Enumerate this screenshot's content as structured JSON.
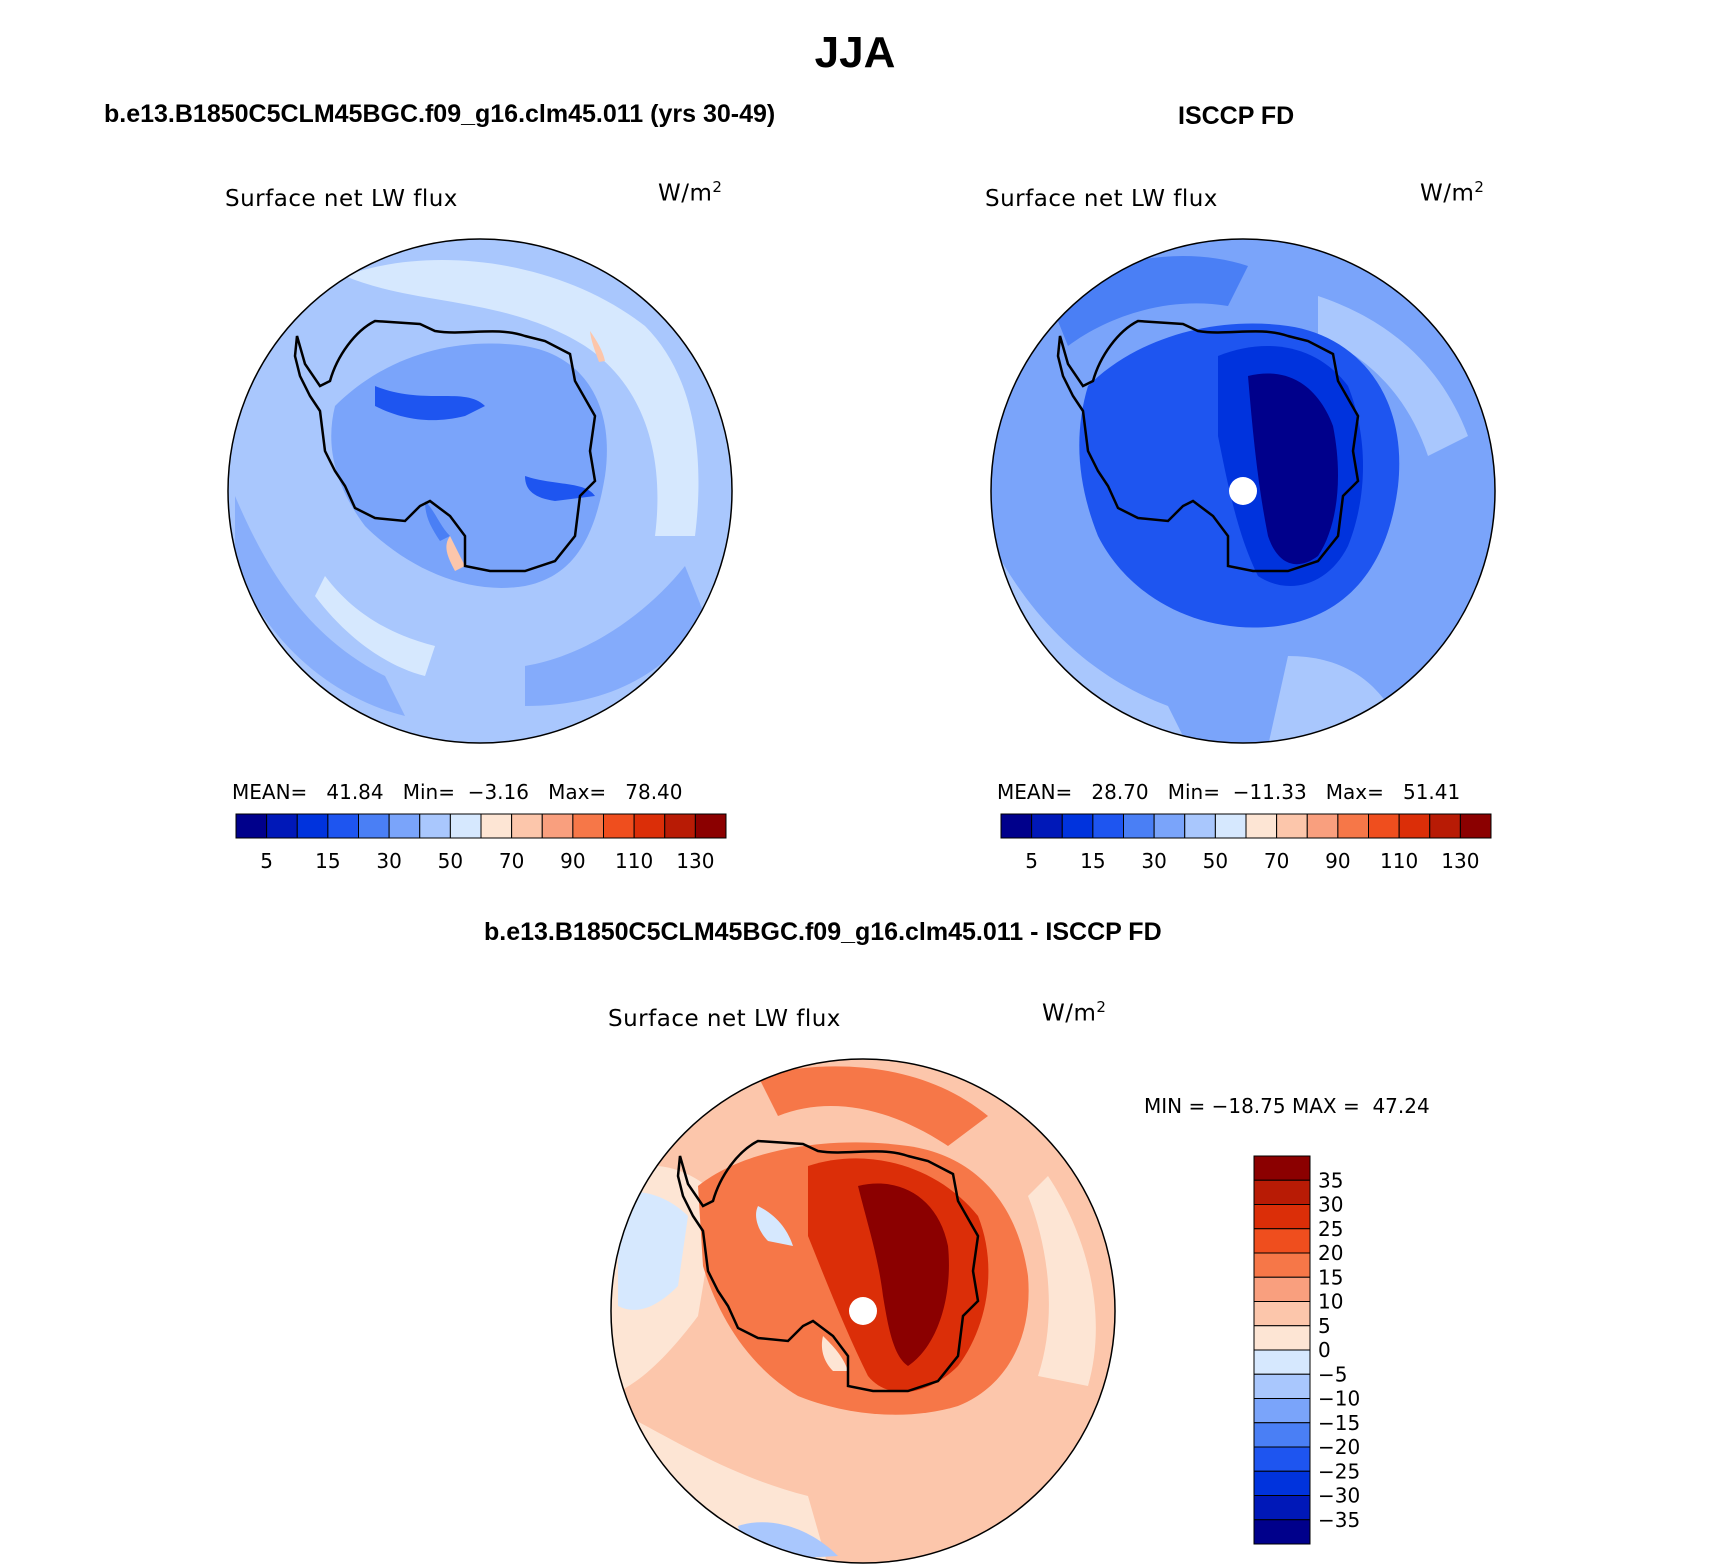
{
  "figure": {
    "title": "JJA"
  },
  "panels": {
    "model": {
      "heading": "b.e13.B1850C5CLM45BGC.f09_g16.clm45.011 (yrs 30-49)",
      "variable": "Surface net LW flux",
      "units": "W/m",
      "units_exp": "2",
      "stats": {
        "mean_label": "MEAN=",
        "mean": "41.84",
        "min_label": "Min=",
        "min": "−3.16",
        "max_label": "Max=",
        "max": "78.40"
      }
    },
    "obs": {
      "heading": "ISCCP FD",
      "variable": "Surface net LW flux",
      "units": "W/m",
      "units_exp": "2",
      "stats": {
        "mean_label": "MEAN=",
        "mean": "28.70",
        "min_label": "Min=",
        "min": "−11.33",
        "max_label": "Max=",
        "max": "51.41"
      }
    },
    "diff": {
      "heading": "b.e13.B1850C5CLM45BGC.f09_g16.clm45.011 - ISCCP FD",
      "variable": "Surface net LW flux",
      "units": "W/m",
      "units_exp": "2",
      "stats": {
        "min_label": "MIN =",
        "min": "−18.75",
        "max_label": "MAX =",
        "max": "47.24"
      }
    }
  },
  "colorbar_main": {
    "colors": [
      "#00008b",
      "#0018b8",
      "#0033dd",
      "#1e55f0",
      "#4a7ff5",
      "#7aa4fa",
      "#a9c7fd",
      "#d6e8fe",
      "#fde5d4",
      "#fcc6ab",
      "#f99f7e",
      "#f67748",
      "#ef4e1e",
      "#db2e08",
      "#b81b05",
      "#8b0000"
    ],
    "tick_labels": [
      "5",
      "15",
      "30",
      "50",
      "70",
      "90",
      "110",
      "130"
    ]
  },
  "colorbar_diff": {
    "colors": [
      "#8b0000",
      "#b81b05",
      "#db2e08",
      "#ef4e1e",
      "#f67748",
      "#f99f7e",
      "#fcc6ab",
      "#fde5d4",
      "#d6e8fe",
      "#a9c7fd",
      "#7aa4fa",
      "#4a7ff5",
      "#1e55f0",
      "#0033dd",
      "#0018b8",
      "#00008b"
    ],
    "tick_labels": [
      "35",
      "30",
      "25",
      "20",
      "15",
      "10",
      "5",
      "0",
      "−5",
      "−10",
      "−15",
      "−20",
      "−25",
      "−30",
      "−35"
    ]
  }
}
